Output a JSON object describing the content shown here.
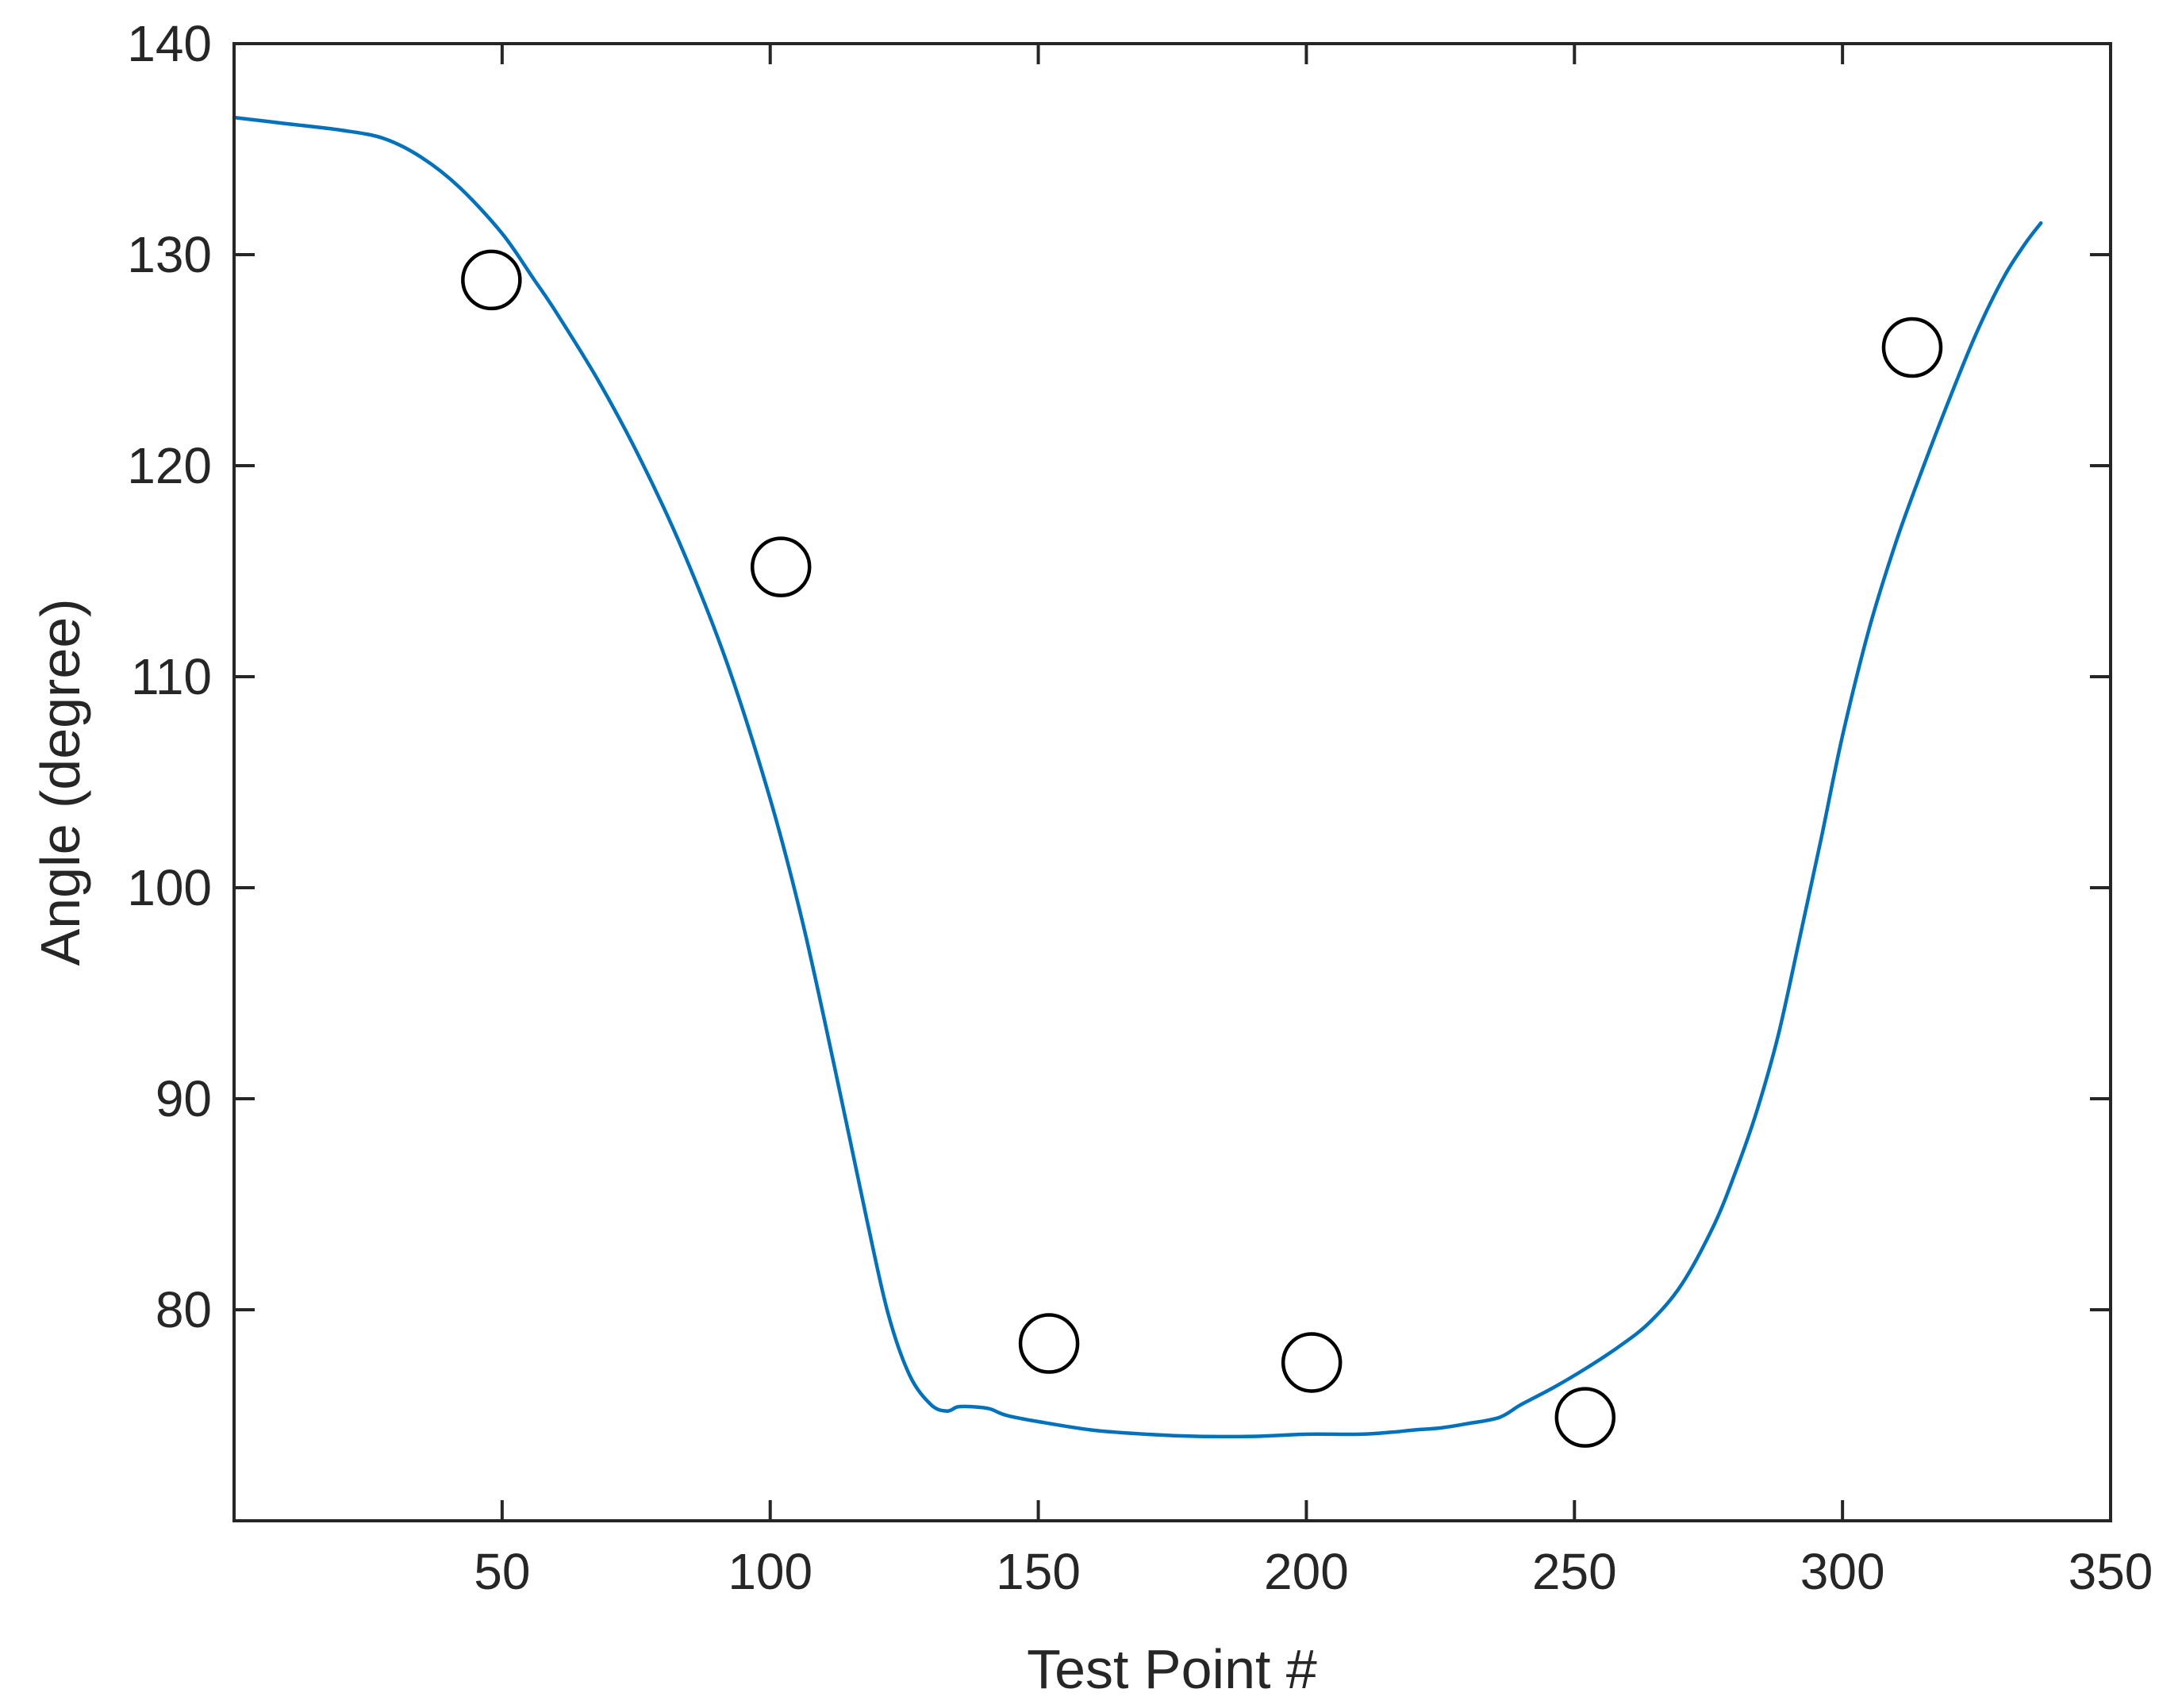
{
  "chart_data": {
    "type": "line",
    "xlabel": "Test Point #",
    "ylabel": "Angle (degree)",
    "xlim": [
      0,
      350
    ],
    "ylim": [
      70,
      140
    ],
    "xticks": [
      50,
      100,
      150,
      200,
      250,
      300,
      350
    ],
    "yticks": [
      80,
      90,
      100,
      110,
      120,
      130,
      140
    ],
    "grid": false,
    "box": true,
    "line_color": "#0072BD",
    "marker_color": "#000000",
    "series": [
      {
        "type": "line",
        "x": [
          0,
          10,
          20,
          28,
          35,
          42,
          50,
          56,
          60,
          68,
          76,
          84,
          92,
          100,
          106,
          112,
          118,
          122,
          126,
          130,
          133,
          135,
          138,
          141,
          144,
          150,
          160,
          170,
          180,
          190,
          200,
          210,
          216,
          220,
          225,
          230,
          236,
          240,
          246,
          252,
          258,
          264,
          270,
          276,
          280,
          284,
          288,
          292,
          296,
          300,
          305,
          310,
          315,
          320,
          325,
          330,
          334,
          337
        ],
        "y": [
          136.5,
          136.2,
          135.9,
          135.5,
          134.6,
          133.2,
          131.0,
          128.8,
          127.3,
          124.0,
          120.2,
          115.8,
          110.6,
          104.2,
          98.4,
          91.5,
          84.3,
          79.8,
          76.9,
          75.5,
          75.2,
          75.4,
          75.4,
          75.3,
          75.0,
          74.7,
          74.3,
          74.1,
          74.0,
          74.0,
          74.1,
          74.1,
          74.2,
          74.3,
          74.4,
          74.6,
          74.9,
          75.5,
          76.3,
          77.2,
          78.2,
          79.4,
          81.2,
          84.0,
          86.5,
          89.4,
          93.0,
          97.6,
          102.3,
          107.2,
          112.3,
          116.4,
          119.9,
          123.2,
          126.3,
          128.9,
          130.5,
          131.5
        ]
      },
      {
        "type": "scatter",
        "marker": "circle",
        "x": [
          48,
          102,
          152,
          201,
          252,
          313
        ],
        "y": [
          128.8,
          115.2,
          78.4,
          77.5,
          74.9,
          125.6
        ]
      }
    ]
  }
}
